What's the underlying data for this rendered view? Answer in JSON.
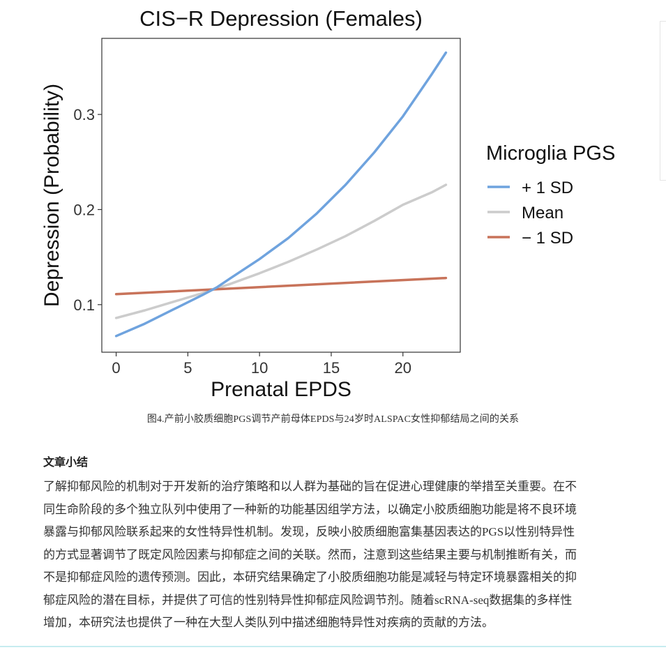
{
  "chart_data": {
    "type": "line",
    "title": "CIS−R Depression (Females)",
    "xlabel": "Prenatal EPDS",
    "ylabel": "Depression (Probability)",
    "xlim": [
      -1,
      24
    ],
    "ylim": [
      0.05,
      0.38
    ],
    "xticks": [
      0,
      5,
      10,
      15,
      20
    ],
    "yticks": [
      0.1,
      0.2,
      0.3
    ],
    "ytick_labels": [
      "0.1",
      "0.2",
      "0.3"
    ],
    "grid": false,
    "legend_position": "right",
    "legend_title": "Microglia PGS",
    "series": [
      {
        "name": "+ 1 SD",
        "color": "#6fa3de",
        "x": [
          0,
          2,
          4,
          6,
          7,
          8,
          10,
          12,
          14,
          16,
          18,
          20,
          22,
          23
        ],
        "values": [
          0.067,
          0.08,
          0.095,
          0.11,
          0.118,
          0.128,
          0.148,
          0.17,
          0.196,
          0.226,
          0.26,
          0.298,
          0.342,
          0.365
        ]
      },
      {
        "name": "Mean",
        "color": "#cccccc",
        "x": [
          0,
          2,
          4,
          6,
          7,
          8,
          10,
          12,
          14,
          16,
          18,
          20,
          22,
          23
        ],
        "values": [
          0.086,
          0.094,
          0.103,
          0.112,
          0.117,
          0.122,
          0.133,
          0.145,
          0.158,
          0.172,
          0.188,
          0.205,
          0.218,
          0.226
        ]
      },
      {
        "name": "− 1 SD",
        "color": "#c8735a",
        "x": [
          0,
          23
        ],
        "values": [
          0.111,
          0.128
        ]
      }
    ]
  },
  "caption": "图4.产前小胶质细胞PGS调节产前母体EPDS与24岁时ALSPAC女性抑郁结局之间的关系",
  "article": {
    "heading": "文章小结",
    "lines": [
      "了解抑郁风险的机制对于开发新的治疗策略和以人群为基础的旨在促进心理健康的举措至关重要。在不",
      "同生命阶段的多个独立队列中使用了一种新的功能基因组学方法，以确定小胶质细胞功能是将不良环境",
      "暴露与抑郁风险联系起来的女性特异性机制。发现，反映小胶质细胞富集基因表达的PGS以性别特异性",
      "的方式显著调节了既定风险因素与抑郁症之间的关联。然而，注意到这些结果主要与机制推断有关，而",
      "不是抑郁症风险的遗传预测。因此，本研究结果确定了小胶质细胞功能是减轻与特定环境暴露相关的抑",
      "郁症风险的潜在目标，并提供了可信的性别特异性抑郁症风险调节剂。随着scRNA-seq数据集的多样性",
      "增加，本研究法也提供了一种在大型人类队列中描述细胞特异性对疾病的贡献的方法。"
    ]
  }
}
